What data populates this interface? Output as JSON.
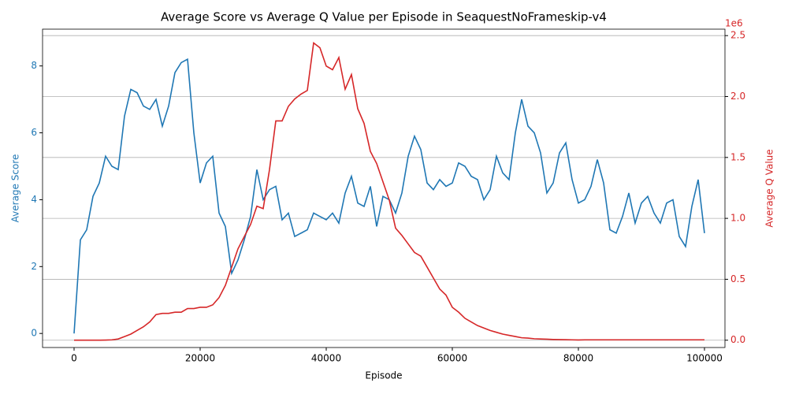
{
  "chart_data": {
    "type": "line",
    "title": "Average Score vs Average Q Value per Episode in SeaquestNoFrameskip-v4",
    "x_label": "Episode",
    "y_label": "Average Score",
    "y2_label": "Average Q Value",
    "y2_offset_label": "1e6",
    "x": [
      0,
      1000,
      2000,
      3000,
      4000,
      5000,
      6000,
      7000,
      8000,
      9000,
      10000,
      11000,
      12000,
      13000,
      14000,
      15000,
      16000,
      17000,
      18000,
      19000,
      20000,
      21000,
      22000,
      23000,
      24000,
      25000,
      26000,
      27000,
      28000,
      29000,
      30000,
      31000,
      32000,
      33000,
      34000,
      35000,
      36000,
      37000,
      38000,
      39000,
      40000,
      41000,
      42000,
      43000,
      44000,
      45000,
      46000,
      47000,
      48000,
      49000,
      50000,
      51000,
      52000,
      53000,
      54000,
      55000,
      56000,
      57000,
      58000,
      59000,
      60000,
      61000,
      62000,
      63000,
      64000,
      65000,
      66000,
      67000,
      68000,
      69000,
      70000,
      71000,
      72000,
      73000,
      74000,
      75000,
      76000,
      77000,
      78000,
      79000,
      80000,
      81000,
      82000,
      83000,
      84000,
      85000,
      86000,
      87000,
      88000,
      89000,
      90000,
      91000,
      92000,
      93000,
      94000,
      95000,
      96000,
      97000,
      98000,
      99000,
      100000
    ],
    "series": [
      {
        "name": "Average Score",
        "color": "#1f77b4",
        "axis": "y",
        "values": [
          0,
          2.8,
          3.1,
          4.1,
          4.5,
          5.3,
          5.0,
          4.9,
          6.5,
          7.3,
          7.2,
          6.8,
          6.7,
          7.0,
          6.2,
          6.8,
          7.8,
          8.1,
          8.2,
          6.0,
          4.5,
          5.1,
          5.3,
          3.6,
          3.2,
          1.8,
          2.2,
          2.8,
          3.5,
          4.9,
          4.0,
          4.3,
          4.4,
          3.4,
          3.6,
          2.9,
          3.0,
          3.1,
          3.6,
          3.5,
          3.4,
          3.6,
          3.3,
          4.2,
          4.7,
          3.9,
          3.8,
          4.4,
          3.2,
          4.1,
          4.0,
          3.6,
          4.2,
          5.3,
          5.9,
          5.5,
          4.5,
          4.3,
          4.6,
          4.4,
          4.5,
          5.1,
          5.0,
          4.7,
          4.6,
          4.0,
          4.3,
          5.3,
          4.8,
          4.6,
          6.0,
          7.0,
          6.2,
          6.0,
          5.4,
          4.2,
          4.5,
          5.4,
          5.7,
          4.6,
          3.9,
          4.0,
          4.4,
          5.2,
          4.5,
          3.1,
          3.0,
          3.5,
          4.2,
          3.3,
          3.9,
          4.1,
          3.6,
          3.3,
          3.9,
          4.0,
          2.9,
          2.6,
          3.8,
          4.6,
          3.0
        ]
      },
      {
        "name": "Average Q Value",
        "color": "#d62728",
        "axis": "y2",
        "values": [
          0,
          0,
          0,
          0,
          0,
          1000,
          3000,
          10000,
          30000,
          50000,
          80000,
          110000,
          150000,
          210000,
          220000,
          220000,
          230000,
          230000,
          260000,
          260000,
          270000,
          270000,
          290000,
          350000,
          450000,
          600000,
          750000,
          850000,
          950000,
          1100000,
          1080000,
          1400000,
          1800000,
          1800000,
          1920000,
          1980000,
          2020000,
          2050000,
          2440000,
          2400000,
          2250000,
          2220000,
          2320000,
          2060000,
          2180000,
          1900000,
          1780000,
          1550000,
          1450000,
          1300000,
          1150000,
          920000,
          860000,
          790000,
          720000,
          690000,
          600000,
          510000,
          420000,
          370000,
          270000,
          230000,
          180000,
          150000,
          120000,
          100000,
          80000,
          65000,
          50000,
          40000,
          30000,
          20000,
          17000,
          12000,
          10000,
          8000,
          6000,
          5000,
          4000,
          3000,
          2000,
          3000,
          3000,
          3000,
          3000,
          3000,
          3000,
          3000,
          3000,
          3000,
          3000,
          3000,
          3000,
          3000,
          3000,
          3000,
          3000,
          3000,
          3000,
          3000,
          3000
        ]
      }
    ],
    "xlim": [
      -5000,
      103250
    ],
    "ylim": [
      -0.42,
      9.1
    ],
    "y2lim": [
      -60000,
      2553000
    ],
    "xticks": [
      0,
      20000,
      40000,
      60000,
      80000,
      100000
    ],
    "yticks": [
      0,
      2,
      4,
      6,
      8
    ],
    "y2ticks": [
      {
        "value": 0,
        "label": "0.0"
      },
      {
        "value": 500000,
        "label": "0.5"
      },
      {
        "value": 1000000,
        "label": "1.0"
      },
      {
        "value": 1500000,
        "label": "1.5"
      },
      {
        "value": 2000000,
        "label": "2.0"
      },
      {
        "value": 2500000,
        "label": "2.5"
      }
    ],
    "grid": "y2"
  }
}
